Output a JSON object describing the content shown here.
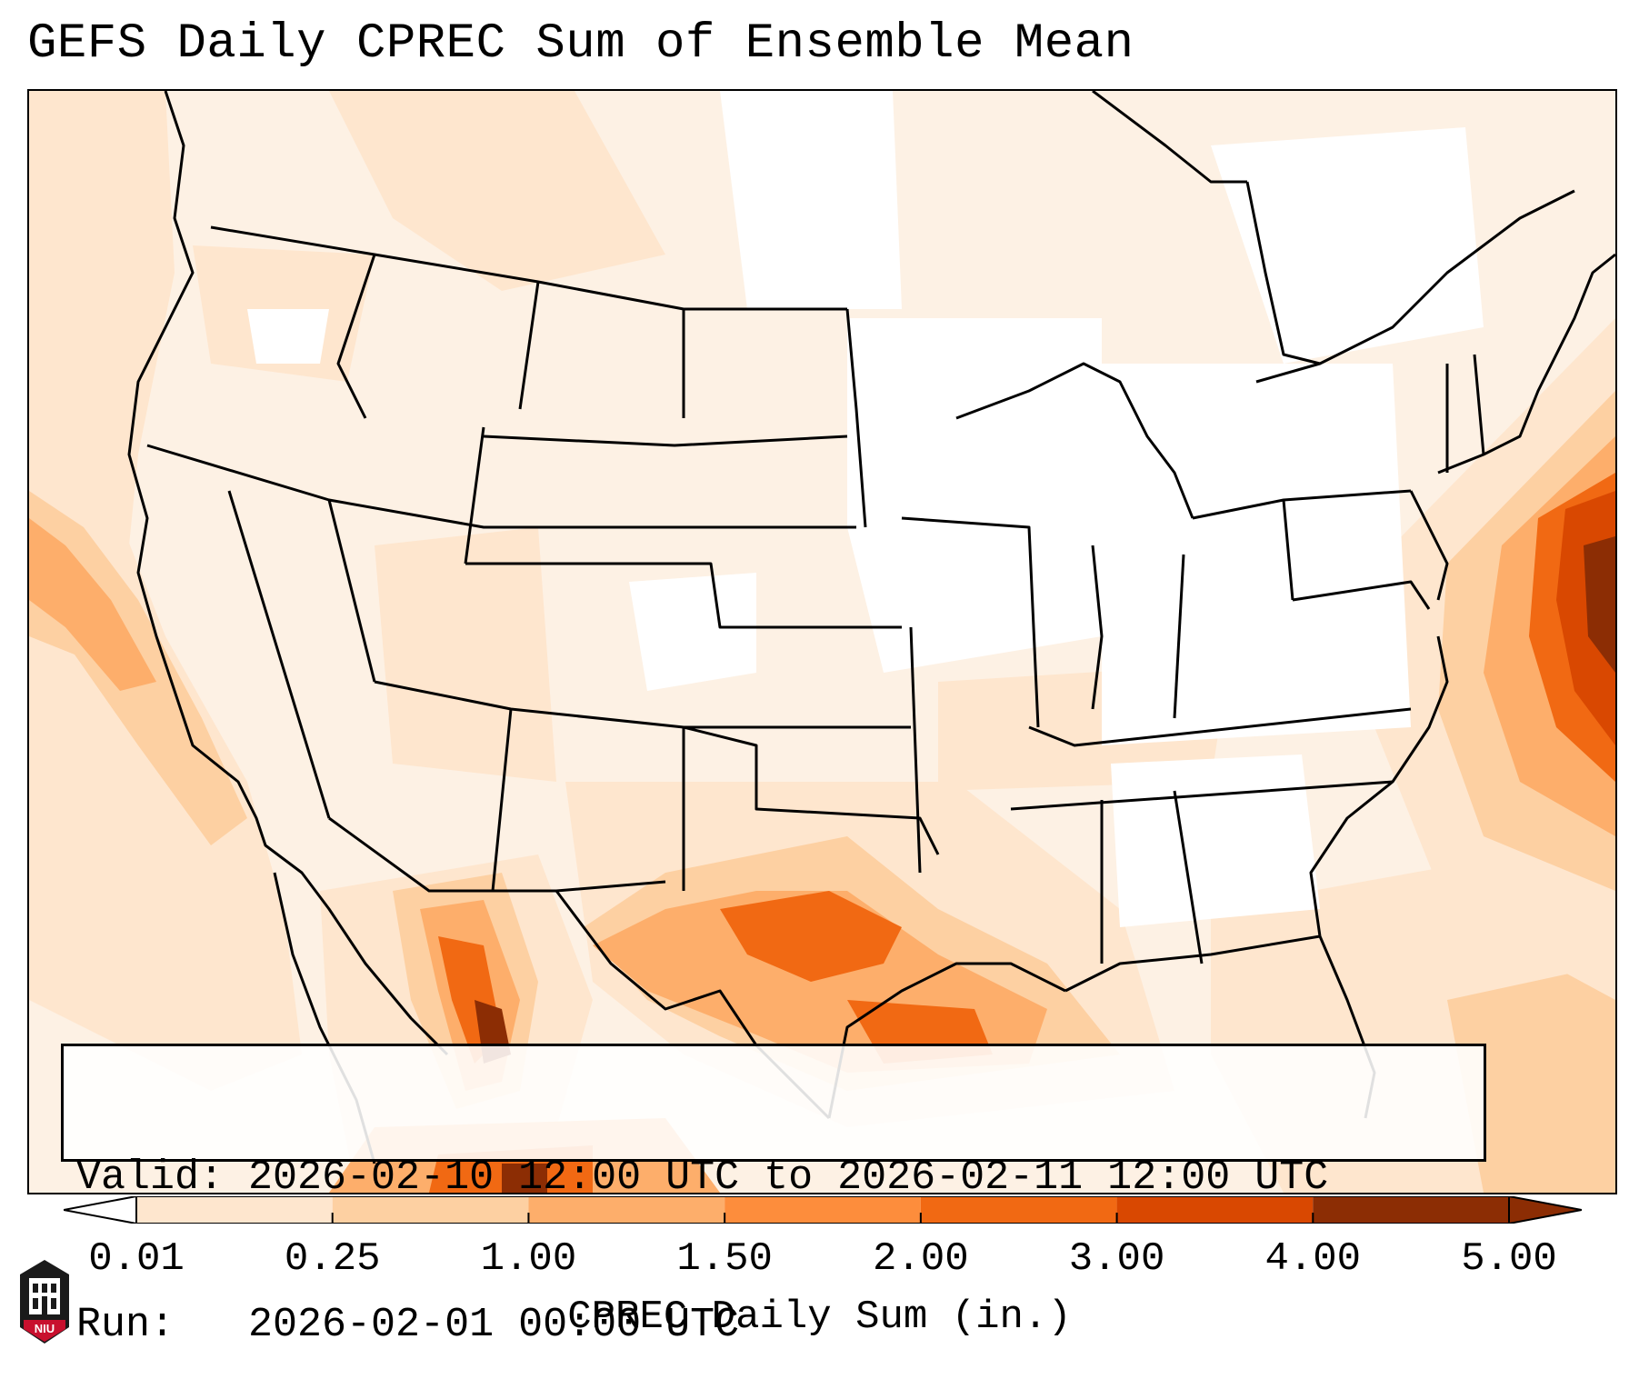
{
  "header": {
    "title": "GEFS Daily CPREC Sum of Ensemble Mean"
  },
  "info_box": {
    "valid_line": "Valid: 2026-02-10 12:00 UTC to 2026-02-11 12:00 UTC",
    "run_line": "Run:   2026-02-01 00:00 UTC"
  },
  "colorbar": {
    "label": "CPREC Daily Sum (in.)",
    "ticks": [
      "0.01",
      "0.25",
      "1.00",
      "1.50",
      "2.00",
      "3.00",
      "4.00",
      "5.00"
    ],
    "colors": [
      "#fff5eb",
      "#fee6ce",
      "#fdd0a2",
      "#fdae6b",
      "#fd8d3c",
      "#f16913",
      "#d94801",
      "#8c2d04"
    ],
    "extend": "both"
  },
  "logo": {
    "text": "NIU",
    "icon": "university-seal-icon"
  },
  "map": {
    "region": "Contiguous United States",
    "colors": {
      "background": "#fdf1e4",
      "light": "#fee6ce",
      "medium": "#fdd0a2",
      "strong": "#fdae6b",
      "heavy": "#f16913",
      "extreme": "#d94801",
      "max": "#8c2d04",
      "borders": "#000000"
    }
  }
}
